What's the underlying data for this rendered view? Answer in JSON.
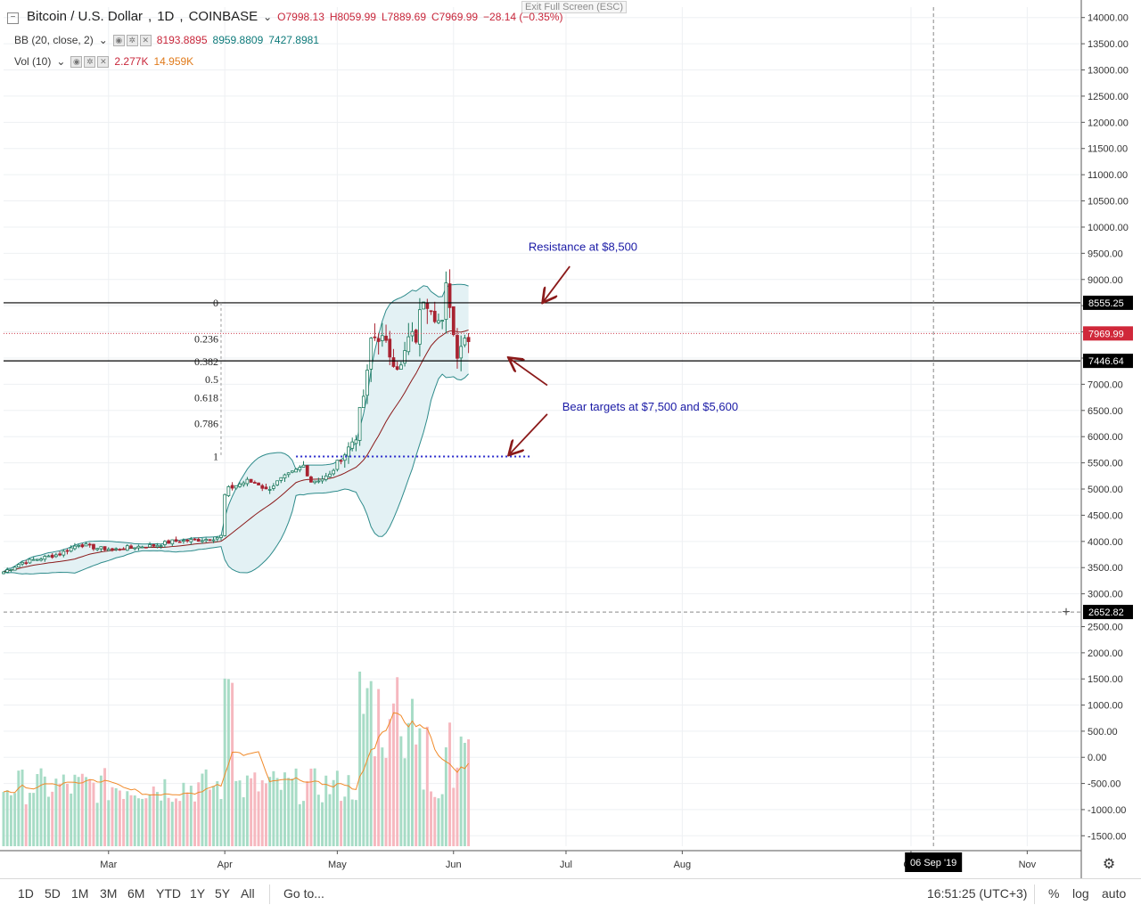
{
  "header": {
    "symbol_title": "Bitcoin / U.S. Dollar",
    "interval": "1D",
    "exchange": "COINBASE",
    "open": "O7998.13",
    "high": "H8059.99",
    "low": "L7889.69",
    "close": "C7969.99",
    "change": "−28.14 (−0.35%)",
    "bb_label": "BB (20, close, 2)",
    "bb_basis": "8193.8895",
    "bb_upper": "8959.8809",
    "bb_lower": "7427.8981",
    "vol_label": "Vol (10)",
    "vol_value": "2.277K",
    "vol_ma": "14.959K"
  },
  "exit_fullscreen": "Exit Full Screen (ESC)",
  "bottom_toolbar": {
    "timeframes": [
      "1D",
      "5D",
      "1M",
      "3M",
      "6M",
      "YTD",
      "1Y",
      "5Y",
      "All"
    ],
    "goto": "Go to...",
    "clock": "16:51:25 (UTC+3)",
    "percent": "%",
    "log": "log",
    "auto": "auto"
  },
  "colors": {
    "up": "#26a69a",
    "down": "#ef5350",
    "band": "#2e8b8b",
    "band_fill": "#e3f1f4",
    "basis": "#8b1a1a",
    "annot": "#1a1aa6",
    "arrow": "#8b1a1a",
    "vol_up": "#a7dcc6",
    "vol_down": "#f6b8bf",
    "vol_ma": "#f08a2a"
  },
  "chart_data": [
    {
      "type": "candlestick",
      "title": "Bitcoin / U.S. Dollar, 1D, COINBASE",
      "price_axis": {
        "ticks": [
          3000,
          3500,
          4000,
          4500,
          5000,
          5500,
          6000,
          6500,
          7000,
          7500,
          8000,
          8500,
          9000,
          9500,
          10000,
          10500,
          11000,
          11500,
          12000,
          12500,
          13000,
          13500,
          14000
        ],
        "tick_labels": [
          "3000.00",
          "3500.00",
          "4000.00",
          "4500.00",
          "5000.00",
          "5500.00",
          "6000.00",
          "6500.00",
          "7000.00",
          "7500.00",
          "8000.00",
          "8500.00",
          "9000.00",
          "9500.00",
          "10000.00",
          "10500.00",
          "11000.00",
          "11500.00",
          "12000.00",
          "12500.00",
          "13000.00",
          "13500.00",
          "14000.00"
        ],
        "range": [
          2450,
          14080
        ]
      },
      "time_axis": {
        "labels": [
          "Mar",
          "Apr",
          "May",
          "Jun",
          "Jul",
          "Aug",
          "Oct",
          "Nov"
        ],
        "label_days": [
          28,
          59,
          89,
          120,
          150,
          181,
          242,
          273
        ],
        "crosshair_label": "06 Sep '19",
        "crosshair_day": 248,
        "range_days": [
          0,
          280
        ]
      },
      "price_labels": [
        {
          "value": 8555.25,
          "text": "8555.25",
          "kind": "line"
        },
        {
          "value": 7969.99,
          "text": "7969.99",
          "kind": "last"
        },
        {
          "value": 7446.64,
          "text": "7446.64",
          "kind": "line"
        },
        {
          "value": 2652.82,
          "text": "2652.82",
          "kind": "crosshair"
        }
      ],
      "horizontal_lines": [
        8555.25,
        7446.64
      ],
      "fibonacci": {
        "levels": [
          "0",
          "0.236",
          "0.382",
          "0.5",
          "0.618",
          "0.786",
          "1"
        ],
        "top": 8555.25,
        "bottom": 5620,
        "anchor_day": 58
      },
      "support_dotted_line": {
        "value": 5620,
        "from_day": 78,
        "to_day": 141
      },
      "annotations": [
        {
          "text": "Resistance at $8,500",
          "value": 9550,
          "day": 140
        },
        {
          "text": "Bear targets at $7,500 and $5,600",
          "value": 6500,
          "day": 149
        }
      ],
      "arrows": [
        {
          "from_day": 151,
          "from_value": 9250,
          "to_day": 144,
          "to_value": 8580
        },
        {
          "from_day": 145,
          "from_value": 6980,
          "to_day": 135,
          "to_value": 7490
        },
        {
          "from_day": 145,
          "from_value": 6430,
          "to_day": 135,
          "to_value": 5670
        }
      ],
      "series": [
        {
          "name": "BTCUSD daily",
          "description": "trend path of daily closes",
          "anchors": [
            [
              0,
              3420
            ],
            [
              5,
              3600
            ],
            [
              10,
              3680
            ],
            [
              15,
              3760
            ],
            [
              20,
              3950
            ],
            [
              25,
              3870
            ],
            [
              30,
              3850
            ],
            [
              35,
              3900
            ],
            [
              40,
              3920
            ],
            [
              45,
              4000
            ],
            [
              50,
              4020
            ],
            [
              55,
              4050
            ],
            [
              58,
              4100
            ],
            [
              59,
              4880
            ],
            [
              60,
              5000
            ],
            [
              62,
              5070
            ],
            [
              65,
              5150
            ],
            [
              68,
              5100
            ],
            [
              70,
              4980
            ],
            [
              74,
              5180
            ],
            [
              78,
              5350
            ],
            [
              80,
              5450
            ],
            [
              82,
              5150
            ],
            [
              85,
              5200
            ],
            [
              87,
              5260
            ],
            [
              89,
              5500
            ],
            [
              92,
              5780
            ],
            [
              94,
              6050
            ],
            [
              97,
              7150
            ],
            [
              98,
              7850
            ],
            [
              100,
              7950
            ],
            [
              102,
              7700
            ],
            [
              104,
              7500
            ],
            [
              106,
              7300
            ],
            [
              108,
              7850
            ],
            [
              110,
              7900
            ],
            [
              112,
              8700
            ],
            [
              114,
              8550
            ],
            [
              116,
              8200
            ],
            [
              117,
              8100
            ],
            [
              118,
              8800
            ],
            [
              119,
              8600
            ],
            [
              120,
              7950
            ],
            [
              121,
              7650
            ],
            [
              122,
              7800
            ],
            [
              124,
              7970
            ]
          ]
        },
        {
          "name": "BB (20, close, 2) basis",
          "values_from": "20-period SMA of closes",
          "last": 8193.8895
        },
        {
          "name": "BB upper",
          "last": 8959.8809
        },
        {
          "name": "BB lower",
          "last": 7427.8981
        }
      ]
    },
    {
      "type": "bar",
      "title": "Vol (10)",
      "y_axis": {
        "ticks": [
          -1500,
          -1000,
          -500,
          0,
          500,
          1000,
          1500,
          2000,
          2500
        ],
        "tick_labels": [
          "-1500.00",
          "-1000.00",
          "-500.00",
          "0.00",
          "500.00",
          "1000.00",
          "1500.00",
          "2000.00",
          "2500.00"
        ],
        "range": [
          -1700,
          2560
        ]
      },
      "series": [
        {
          "name": "Vol",
          "last": "2.277K"
        },
        {
          "name": "Vol MA",
          "last": "14.959K"
        }
      ]
    }
  ]
}
